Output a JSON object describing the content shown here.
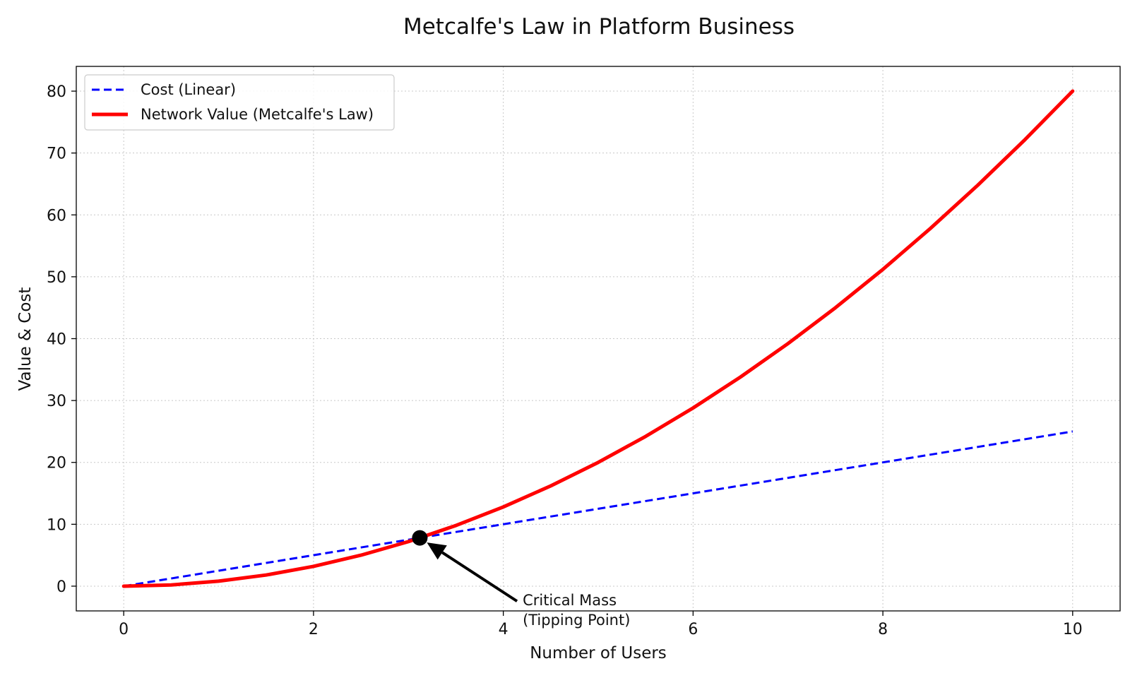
{
  "chart_data": {
    "type": "line",
    "title": "Metcalfe's Law in Platform Business",
    "xlabel": "Number of Users",
    "ylabel": "Value & Cost",
    "xlim": [
      -0.5,
      10.5
    ],
    "ylim": [
      -4,
      84
    ],
    "xticks": [
      0,
      2,
      4,
      6,
      8,
      10
    ],
    "yticks": [
      0,
      10,
      20,
      30,
      40,
      50,
      60,
      70,
      80
    ],
    "grid": true,
    "legend_position": "upper-left",
    "series": [
      {
        "name": "Cost (Linear)",
        "color": "#0000ff",
        "style": "dashed",
        "x": [
          0,
          1,
          2,
          3,
          4,
          5,
          6,
          7,
          8,
          9,
          10
        ],
        "y": [
          0,
          2.5,
          5,
          7.5,
          10,
          12.5,
          15,
          17.5,
          20,
          22.5,
          25
        ]
      },
      {
        "name": "Network Value (Metcalfe's Law)",
        "color": "#ff0000",
        "style": "solid",
        "x": [
          0,
          0.5,
          1,
          1.5,
          2,
          2.5,
          3,
          3.5,
          4,
          4.5,
          5,
          5.5,
          6,
          6.5,
          7,
          7.5,
          8,
          8.5,
          9,
          9.5,
          10
        ],
        "y": [
          0,
          0.2,
          0.8,
          1.8,
          3.2,
          5,
          7.2,
          9.8,
          12.8,
          16.2,
          20,
          24.2,
          28.8,
          33.8,
          39.2,
          45,
          51.2,
          57.8,
          64.8,
          72.2,
          80
        ]
      }
    ],
    "annotations": [
      {
        "text_line1": "Critical Mass",
        "text_line2": "(Tipping Point)",
        "point": [
          3.12,
          7.8
        ],
        "text_anchor": [
          4.1,
          -3.0
        ]
      }
    ]
  }
}
